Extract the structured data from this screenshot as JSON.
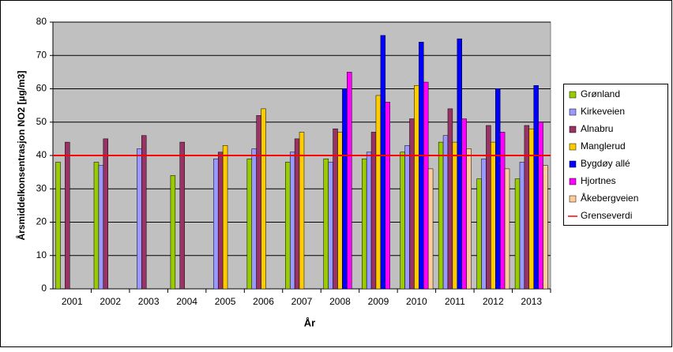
{
  "chart_data": {
    "type": "bar",
    "x_label": "År",
    "y_label": "Årsmiddelkonsentrasjon NO2 [µg/m3]",
    "categories": [
      "2001",
      "2002",
      "2003",
      "2004",
      "2005",
      "2006",
      "2007",
      "2008",
      "2009",
      "2010",
      "2011",
      "2012",
      "2013"
    ],
    "series": [
      {
        "name": "Grønland",
        "color": "#99cc00",
        "values": [
          38,
          38,
          null,
          34,
          null,
          39,
          38,
          39,
          39,
          41,
          44,
          33,
          33
        ]
      },
      {
        "name": "Kirkeveien",
        "color": "#9999ff",
        "values": [
          null,
          37,
          42,
          null,
          39,
          42,
          41,
          38,
          41,
          43,
          46,
          39,
          38
        ]
      },
      {
        "name": "Alnabru",
        "color": "#993366",
        "values": [
          44,
          45,
          46,
          44,
          41,
          52,
          45,
          48,
          47,
          51,
          54,
          49,
          49
        ]
      },
      {
        "name": "Manglerud",
        "color": "#ffcc00",
        "values": [
          null,
          null,
          null,
          null,
          43,
          54,
          47,
          47,
          58,
          61,
          44,
          44,
          48
        ]
      },
      {
        "name": "Bygdøy allé",
        "color": "#0000ff",
        "values": [
          null,
          null,
          null,
          null,
          null,
          null,
          null,
          60,
          76,
          74,
          75,
          60,
          61
        ]
      },
      {
        "name": "Hjortnes",
        "color": "#ff00ff",
        "values": [
          null,
          null,
          null,
          null,
          null,
          null,
          null,
          65,
          56,
          62,
          51,
          47,
          50
        ]
      },
      {
        "name": "Åkebergveien",
        "color": "#ffcc99",
        "values": [
          null,
          null,
          null,
          null,
          null,
          null,
          null,
          null,
          null,
          36,
          42,
          36,
          37
        ]
      }
    ],
    "threshold": {
      "name": "Grenseverdi",
      "value": 40,
      "color": "#ff0000"
    },
    "ylim": [
      0,
      80
    ],
    "yticks": [
      0,
      10,
      20,
      30,
      40,
      50,
      60,
      70,
      80
    ],
    "grid": true
  }
}
